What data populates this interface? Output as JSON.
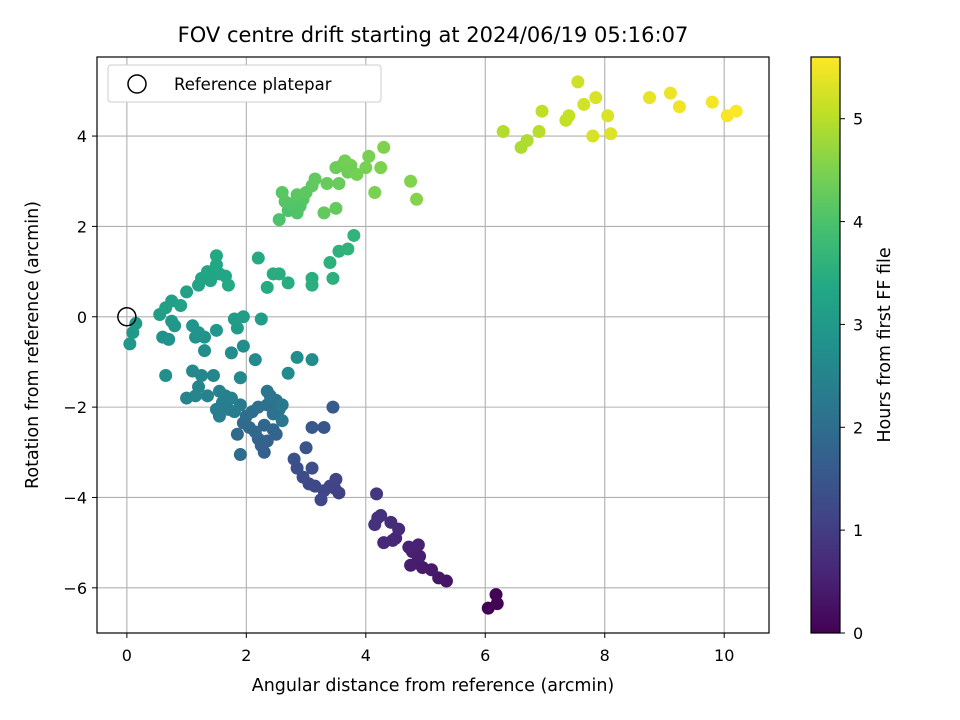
{
  "chart_data": {
    "type": "scatter",
    "title": "FOV centre drift starting at 2024/06/19 05:16:07",
    "xlabel": "Angular distance from reference (arcmin)",
    "ylabel": "Rotation from reference (arcmin)",
    "xlim": [
      -0.5,
      10.75
    ],
    "ylim": [
      -7.0,
      5.75
    ],
    "xticks": [
      0,
      2,
      4,
      6,
      8,
      10
    ],
    "yticks": [
      -6,
      -4,
      -2,
      0,
      2,
      4
    ],
    "grid": true,
    "legend": {
      "position": "top-left",
      "entries": [
        "Reference platepar"
      ]
    },
    "reference_point": {
      "x": 0,
      "y": 0,
      "label": "Reference platepar",
      "marker": "open-circle"
    },
    "colorbar": {
      "label": "Hours from first FF file",
      "colormap": "viridis",
      "range": [
        0,
        5.6
      ],
      "ticks": [
        0,
        1,
        2,
        3,
        4,
        5
      ]
    },
    "series": [
      {
        "points": [
          {
            "x": 6.05,
            "y": -6.45,
            "t": 0.0
          },
          {
            "x": 6.2,
            "y": -6.35,
            "t": 0.02
          },
          {
            "x": 6.18,
            "y": -6.15,
            "t": 0.04
          },
          {
            "x": 5.35,
            "y": -5.85,
            "t": 0.3
          },
          {
            "x": 5.22,
            "y": -5.78,
            "t": 0.33
          },
          {
            "x": 5.1,
            "y": -5.6,
            "t": 0.38
          },
          {
            "x": 4.95,
            "y": -5.55,
            "t": 0.4
          },
          {
            "x": 4.85,
            "y": -5.45,
            "t": 0.42
          },
          {
            "x": 4.75,
            "y": -5.5,
            "t": 0.44
          },
          {
            "x": 4.9,
            "y": -5.3,
            "t": 0.47
          },
          {
            "x": 4.78,
            "y": -5.2,
            "t": 0.5
          },
          {
            "x": 4.88,
            "y": -5.05,
            "t": 0.52
          },
          {
            "x": 4.72,
            "y": -5.1,
            "t": 0.55
          },
          {
            "x": 4.5,
            "y": -4.9,
            "t": 0.6
          },
          {
            "x": 4.45,
            "y": -4.95,
            "t": 0.62
          },
          {
            "x": 4.3,
            "y": -5.0,
            "t": 0.65
          },
          {
            "x": 4.55,
            "y": -4.7,
            "t": 0.68
          },
          {
            "x": 4.42,
            "y": -4.55,
            "t": 0.72
          },
          {
            "x": 4.2,
            "y": -4.45,
            "t": 0.75
          },
          {
            "x": 4.15,
            "y": -4.6,
            "t": 0.78
          },
          {
            "x": 4.25,
            "y": -4.4,
            "t": 0.8
          },
          {
            "x": 4.18,
            "y": -3.92,
            "t": 0.9
          },
          {
            "x": 3.55,
            "y": -3.9,
            "t": 1.05
          },
          {
            "x": 3.48,
            "y": -3.8,
            "t": 1.08
          },
          {
            "x": 3.4,
            "y": -3.75,
            "t": 1.1
          },
          {
            "x": 3.5,
            "y": -3.6,
            "t": 1.12
          },
          {
            "x": 3.3,
            "y": -3.85,
            "t": 1.15
          },
          {
            "x": 3.25,
            "y": -4.05,
            "t": 1.18
          },
          {
            "x": 3.15,
            "y": -3.75,
            "t": 1.22
          },
          {
            "x": 3.05,
            "y": -3.7,
            "t": 1.25
          },
          {
            "x": 2.95,
            "y": -3.55,
            "t": 1.28
          },
          {
            "x": 3.1,
            "y": -3.35,
            "t": 1.32
          },
          {
            "x": 2.85,
            "y": -3.35,
            "t": 1.35
          },
          {
            "x": 2.8,
            "y": -3.15,
            "t": 1.38
          },
          {
            "x": 3.0,
            "y": -2.9,
            "t": 1.42
          },
          {
            "x": 3.3,
            "y": -2.45,
            "t": 1.5
          },
          {
            "x": 3.1,
            "y": -2.45,
            "t": 1.55
          },
          {
            "x": 3.45,
            "y": -2.0,
            "t": 1.6
          },
          {
            "x": 2.3,
            "y": -3.0,
            "t": 1.7
          },
          {
            "x": 2.25,
            "y": -2.85,
            "t": 1.72
          },
          {
            "x": 2.35,
            "y": -2.75,
            "t": 1.75
          },
          {
            "x": 2.2,
            "y": -2.7,
            "t": 1.78
          },
          {
            "x": 2.5,
            "y": -2.6,
            "t": 1.8
          },
          {
            "x": 2.45,
            "y": -2.5,
            "t": 1.82
          },
          {
            "x": 2.3,
            "y": -2.4,
            "t": 1.85
          },
          {
            "x": 2.15,
            "y": -2.55,
            "t": 1.88
          },
          {
            "x": 2.05,
            "y": -2.45,
            "t": 1.9
          },
          {
            "x": 1.95,
            "y": -2.35,
            "t": 1.92
          },
          {
            "x": 1.85,
            "y": -2.6,
            "t": 1.95
          },
          {
            "x": 1.9,
            "y": -3.05,
            "t": 1.97
          },
          {
            "x": 2.0,
            "y": -2.2,
            "t": 2.0
          },
          {
            "x": 2.1,
            "y": -2.1,
            "t": 2.02
          },
          {
            "x": 2.2,
            "y": -2.0,
            "t": 2.05
          },
          {
            "x": 2.35,
            "y": -1.95,
            "t": 2.08
          },
          {
            "x": 2.45,
            "y": -2.15,
            "t": 2.1
          },
          {
            "x": 2.55,
            "y": -2.05,
            "t": 2.12
          },
          {
            "x": 2.5,
            "y": -1.85,
            "t": 2.15
          },
          {
            "x": 2.4,
            "y": -1.75,
            "t": 2.18
          },
          {
            "x": 2.35,
            "y": -1.65,
            "t": 2.2
          },
          {
            "x": 2.6,
            "y": -2.3,
            "t": 2.22
          },
          {
            "x": 2.6,
            "y": -1.95,
            "t": 2.25
          },
          {
            "x": 1.9,
            "y": -1.95,
            "t": 2.28
          },
          {
            "x": 1.8,
            "y": -2.1,
            "t": 2.3
          },
          {
            "x": 1.7,
            "y": -2.05,
            "t": 2.32
          },
          {
            "x": 1.6,
            "y": -1.9,
            "t": 2.35
          },
          {
            "x": 1.5,
            "y": -2.05,
            "t": 2.38
          },
          {
            "x": 1.55,
            "y": -2.2,
            "t": 2.4
          },
          {
            "x": 1.65,
            "y": -1.75,
            "t": 2.42
          },
          {
            "x": 1.75,
            "y": -1.8,
            "t": 2.44
          },
          {
            "x": 1.55,
            "y": -1.65,
            "t": 2.46
          },
          {
            "x": 1.35,
            "y": -1.75,
            "t": 2.48
          },
          {
            "x": 1.2,
            "y": -1.55,
            "t": 2.5
          },
          {
            "x": 1.15,
            "y": -1.75,
            "t": 2.52
          },
          {
            "x": 1.0,
            "y": -1.8,
            "t": 2.54
          },
          {
            "x": 1.25,
            "y": -1.3,
            "t": 2.56
          },
          {
            "x": 1.45,
            "y": -1.3,
            "t": 2.58
          },
          {
            "x": 1.1,
            "y": -1.2,
            "t": 2.6
          },
          {
            "x": 1.9,
            "y": -1.35,
            "t": 2.62
          },
          {
            "x": 2.15,
            "y": -0.95,
            "t": 2.64
          },
          {
            "x": 2.7,
            "y": -1.25,
            "t": 2.66
          },
          {
            "x": 2.85,
            "y": -0.9,
            "t": 2.68
          },
          {
            "x": 3.1,
            "y": -0.95,
            "t": 2.7
          },
          {
            "x": 1.75,
            "y": -0.8,
            "t": 2.72
          },
          {
            "x": 1.95,
            "y": -0.65,
            "t": 2.74
          },
          {
            "x": 1.3,
            "y": -0.75,
            "t": 2.76
          },
          {
            "x": 0.65,
            "y": -1.3,
            "t": 2.78
          },
          {
            "x": 0.6,
            "y": -0.45,
            "t": 2.8
          },
          {
            "x": 0.7,
            "y": -0.5,
            "t": 2.82
          },
          {
            "x": 1.15,
            "y": -0.45,
            "t": 2.84
          },
          {
            "x": 1.3,
            "y": -0.45,
            "t": 2.86
          },
          {
            "x": 1.2,
            "y": -0.35,
            "t": 2.88
          },
          {
            "x": 1.1,
            "y": -0.2,
            "t": 2.9
          },
          {
            "x": 1.5,
            "y": -0.3,
            "t": 2.92
          },
          {
            "x": 0.8,
            "y": -0.2,
            "t": 2.94
          },
          {
            "x": 0.75,
            "y": -0.1,
            "t": 2.96
          },
          {
            "x": 0.05,
            "y": -0.6,
            "t": 2.98
          },
          {
            "x": 0.1,
            "y": -0.35,
            "t": 3.0
          },
          {
            "x": 0.15,
            "y": -0.15,
            "t": 3.02
          },
          {
            "x": 1.85,
            "y": -0.25,
            "t": 3.04
          },
          {
            "x": 1.8,
            "y": -0.05,
            "t": 3.06
          },
          {
            "x": 1.95,
            "y": 0.0,
            "t": 3.08
          },
          {
            "x": 2.25,
            "y": -0.05,
            "t": 3.1
          },
          {
            "x": 0.55,
            "y": 0.05,
            "t": 3.12
          },
          {
            "x": 0.65,
            "y": 0.2,
            "t": 3.14
          },
          {
            "x": 0.75,
            "y": 0.35,
            "t": 3.16
          },
          {
            "x": 0.9,
            "y": 0.25,
            "t": 3.18
          },
          {
            "x": 1.0,
            "y": 0.55,
            "t": 3.2
          },
          {
            "x": 1.2,
            "y": 0.7,
            "t": 3.22
          },
          {
            "x": 1.25,
            "y": 0.85,
            "t": 3.24
          },
          {
            "x": 1.4,
            "y": 0.8,
            "t": 3.26
          },
          {
            "x": 1.35,
            "y": 1.0,
            "t": 3.28
          },
          {
            "x": 1.55,
            "y": 0.95,
            "t": 3.3
          },
          {
            "x": 1.65,
            "y": 0.9,
            "t": 3.32
          },
          {
            "x": 1.5,
            "y": 1.15,
            "t": 3.34
          },
          {
            "x": 1.5,
            "y": 1.35,
            "t": 3.36
          },
          {
            "x": 1.7,
            "y": 0.7,
            "t": 3.38
          },
          {
            "x": 2.2,
            "y": 1.3,
            "t": 3.4
          },
          {
            "x": 2.35,
            "y": 0.65,
            "t": 3.42
          },
          {
            "x": 2.45,
            "y": 0.95,
            "t": 3.44
          },
          {
            "x": 2.55,
            "y": 0.95,
            "t": 3.46
          },
          {
            "x": 2.7,
            "y": 0.75,
            "t": 3.48
          },
          {
            "x": 3.1,
            "y": 0.85,
            "t": 3.5
          },
          {
            "x": 3.1,
            "y": 0.7,
            "t": 3.52
          },
          {
            "x": 3.45,
            "y": 0.85,
            "t": 3.54
          },
          {
            "x": 3.4,
            "y": 1.2,
            "t": 3.56
          },
          {
            "x": 3.55,
            "y": 1.45,
            "t": 3.58
          },
          {
            "x": 3.7,
            "y": 1.5,
            "t": 3.6
          },
          {
            "x": 3.8,
            "y": 1.8,
            "t": 3.62
          },
          {
            "x": 2.55,
            "y": 2.15,
            "t": 4.0
          },
          {
            "x": 2.7,
            "y": 2.35,
            "t": 4.02
          },
          {
            "x": 2.85,
            "y": 2.3,
            "t": 4.04
          },
          {
            "x": 2.9,
            "y": 2.45,
            "t": 4.06
          },
          {
            "x": 2.75,
            "y": 2.5,
            "t": 4.08
          },
          {
            "x": 2.95,
            "y": 2.6,
            "t": 4.1
          },
          {
            "x": 2.65,
            "y": 2.55,
            "t": 4.12
          },
          {
            "x": 2.6,
            "y": 2.75,
            "t": 4.14
          },
          {
            "x": 2.85,
            "y": 2.7,
            "t": 4.16
          },
          {
            "x": 3.0,
            "y": 2.75,
            "t": 4.18
          },
          {
            "x": 3.1,
            "y": 2.9,
            "t": 4.2
          },
          {
            "x": 3.15,
            "y": 3.05,
            "t": 4.22
          },
          {
            "x": 3.3,
            "y": 2.3,
            "t": 4.24
          },
          {
            "x": 3.5,
            "y": 2.4,
            "t": 4.26
          },
          {
            "x": 3.35,
            "y": 2.95,
            "t": 4.28
          },
          {
            "x": 3.55,
            "y": 2.95,
            "t": 4.3
          },
          {
            "x": 3.5,
            "y": 3.3,
            "t": 4.32
          },
          {
            "x": 3.6,
            "y": 3.35,
            "t": 4.34
          },
          {
            "x": 3.7,
            "y": 3.2,
            "t": 4.36
          },
          {
            "x": 3.75,
            "y": 3.35,
            "t": 4.38
          },
          {
            "x": 3.65,
            "y": 3.45,
            "t": 4.4
          },
          {
            "x": 3.85,
            "y": 3.15,
            "t": 4.42
          },
          {
            "x": 4.0,
            "y": 3.3,
            "t": 4.44
          },
          {
            "x": 4.05,
            "y": 3.55,
            "t": 4.46
          },
          {
            "x": 4.15,
            "y": 2.75,
            "t": 4.48
          },
          {
            "x": 4.25,
            "y": 3.3,
            "t": 4.5
          },
          {
            "x": 4.3,
            "y": 3.75,
            "t": 4.52
          },
          {
            "x": 4.75,
            "y": 3.0,
            "t": 4.54
          },
          {
            "x": 4.85,
            "y": 2.6,
            "t": 4.56
          },
          {
            "x": 6.6,
            "y": 3.75,
            "t": 4.9
          },
          {
            "x": 6.7,
            "y": 3.9,
            "t": 4.92
          },
          {
            "x": 6.3,
            "y": 4.1,
            "t": 4.95
          },
          {
            "x": 6.9,
            "y": 4.1,
            "t": 5.0
          },
          {
            "x": 6.95,
            "y": 4.55,
            "t": 5.05
          },
          {
            "x": 7.35,
            "y": 4.35,
            "t": 5.1
          },
          {
            "x": 7.4,
            "y": 4.45,
            "t": 5.12
          },
          {
            "x": 7.55,
            "y": 5.2,
            "t": 5.2
          },
          {
            "x": 7.65,
            "y": 4.7,
            "t": 5.22
          },
          {
            "x": 7.8,
            "y": 4.0,
            "t": 5.25
          },
          {
            "x": 7.85,
            "y": 4.85,
            "t": 5.28
          },
          {
            "x": 8.05,
            "y": 4.45,
            "t": 5.3
          },
          {
            "x": 8.1,
            "y": 4.05,
            "t": 5.32
          },
          {
            "x": 8.75,
            "y": 4.85,
            "t": 5.4
          },
          {
            "x": 9.1,
            "y": 4.95,
            "t": 5.45
          },
          {
            "x": 9.25,
            "y": 4.65,
            "t": 5.48
          },
          {
            "x": 9.8,
            "y": 4.75,
            "t": 5.52
          },
          {
            "x": 10.05,
            "y": 4.45,
            "t": 5.55
          },
          {
            "x": 10.2,
            "y": 4.55,
            "t": 5.57
          }
        ]
      }
    ]
  }
}
